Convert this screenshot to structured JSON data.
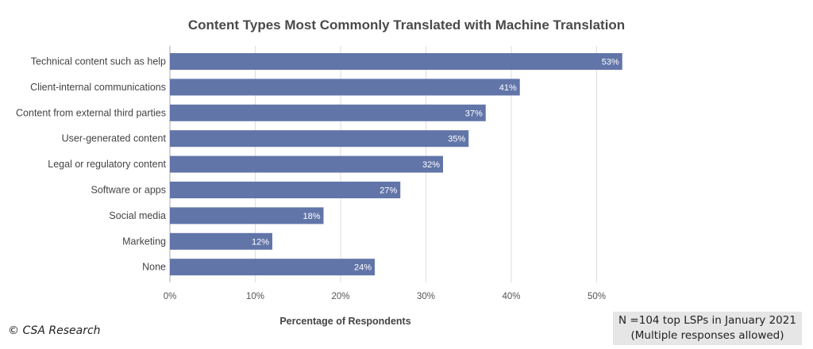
{
  "chart_data": {
    "type": "bar",
    "orientation": "horizontal",
    "title": "Content Types Most Commonly Translated with Machine Translation",
    "xlabel": "Percentage of Respondents",
    "ylabel": "",
    "categories": [
      "Technical content such as help",
      "Client-internal communications",
      "Content from external third parties",
      "User-generated content",
      "Legal or regulatory content",
      "Software or apps",
      "Social media",
      "Marketing",
      "None"
    ],
    "values": [
      53,
      41,
      37,
      35,
      32,
      27,
      18,
      12,
      24
    ],
    "data_labels": [
      "53%",
      "41%",
      "37%",
      "35%",
      "32%",
      "27%",
      "18%",
      "12%",
      "24%"
    ],
    "xlim": [
      0,
      55
    ],
    "xticks": [
      0,
      10,
      20,
      30,
      40,
      50
    ],
    "xtick_labels": [
      "0%",
      "10%",
      "20%",
      "30%",
      "40%",
      "50%"
    ],
    "grid": true,
    "bar_color": "#6275a9",
    "grid_color": "#dddddd"
  },
  "footer": {
    "copyright": "© CSA Research",
    "note_line1": "N =104 top LSPs in January 2021",
    "note_line2": "(Multiple responses allowed)"
  }
}
